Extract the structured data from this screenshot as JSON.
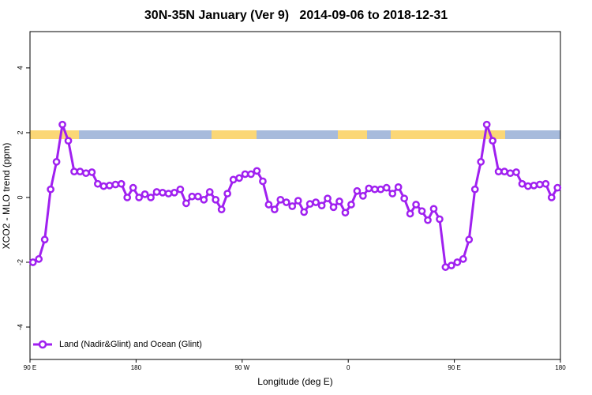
{
  "chart_data": {
    "type": "line",
    "title": "30N-35N January (Ver 9)   2014-09-06 to 2018-12-31",
    "x_label": "Longitude (deg E)",
    "y_label": "XCO2 - MLO trend (ppm)",
    "xlim": [
      90,
      540
    ],
    "ylim": [
      -5,
      5.12
    ],
    "xticks": [
      {
        "value": 90,
        "label": "90 E"
      },
      180,
      {
        "value": 270,
        "label": "90 W"
      },
      {
        "value": 360,
        "label": "0"
      },
      {
        "value": 450,
        "label": "90 E"
      },
      {
        "value": 540,
        "label": "180"
      }
    ],
    "yticks": [
      -4,
      -2,
      0,
      2,
      4
    ],
    "legend": "bottom left",
    "series": [
      {
        "name": "Land (Nadir&Glint) and Ocean (Glint)",
        "color": "#a020f0",
        "x": [
          92.5,
          97.5,
          102.5,
          107.5,
          112.5,
          117.5,
          122.5,
          127.5,
          132.5,
          137.5,
          142.5,
          147.5,
          152.5,
          157.5,
          162.5,
          167.5,
          172.5,
          177.5,
          182.5,
          187.5,
          192.5,
          197.5,
          202.5,
          207.5,
          212.5,
          217.5,
          222.5,
          227.5,
          232.5,
          237.5,
          242.5,
          247.5,
          252.5,
          257.5,
          262.5,
          267.5,
          272.5,
          277.5,
          282.5,
          287.5,
          292.5,
          297.5,
          302.5,
          307.5,
          312.5,
          317.5,
          322.5,
          327.5,
          332.5,
          337.5,
          342.5,
          347.5,
          352.5,
          357.5,
          362.5,
          367.5,
          372.5,
          377.5,
          382.5,
          387.5,
          392.5,
          397.5,
          402.5,
          407.5,
          412.5,
          417.5,
          422.5,
          427.5,
          432.5,
          437.5,
          442.5,
          447.5,
          452.5,
          457.5,
          462.5,
          467.5,
          472.5,
          477.5,
          482.5,
          487.5,
          492.5,
          497.5,
          502.5,
          507.5,
          512.5,
          517.5,
          522.5,
          527.5,
          532.5,
          537.5
        ],
        "values": [
          -2.0,
          -1.9,
          -1.3,
          0.25,
          1.1,
          2.25,
          1.75,
          0.8,
          0.8,
          0.75,
          0.78,
          0.42,
          0.35,
          0.37,
          0.4,
          0.42,
          0.0,
          0.3,
          0.0,
          0.1,
          0.0,
          0.17,
          0.15,
          0.12,
          0.15,
          0.25,
          -0.18,
          0.03,
          0.03,
          -0.07,
          0.17,
          -0.07,
          -0.37,
          0.12,
          0.55,
          0.6,
          0.72,
          0.72,
          0.82,
          0.5,
          -0.22,
          -0.37,
          -0.07,
          -0.15,
          -0.27,
          -0.1,
          -0.45,
          -0.2,
          -0.15,
          -0.25,
          -0.03,
          -0.3,
          -0.12,
          -0.47,
          -0.22,
          0.2,
          0.05,
          0.28,
          0.25,
          0.25,
          0.3,
          0.12,
          0.32,
          -0.03,
          -0.5,
          -0.22,
          -0.42,
          -0.7,
          -0.35,
          -0.67,
          -2.15,
          -2.1,
          -2.0,
          -1.9,
          -1.3,
          0.25,
          1.1,
          2.25,
          1.75,
          0.8,
          0.8,
          0.75,
          0.78,
          0.42,
          0.35,
          0.37,
          0.4,
          0.42,
          0.0,
          0.3
        ]
      }
    ]
  }
}
